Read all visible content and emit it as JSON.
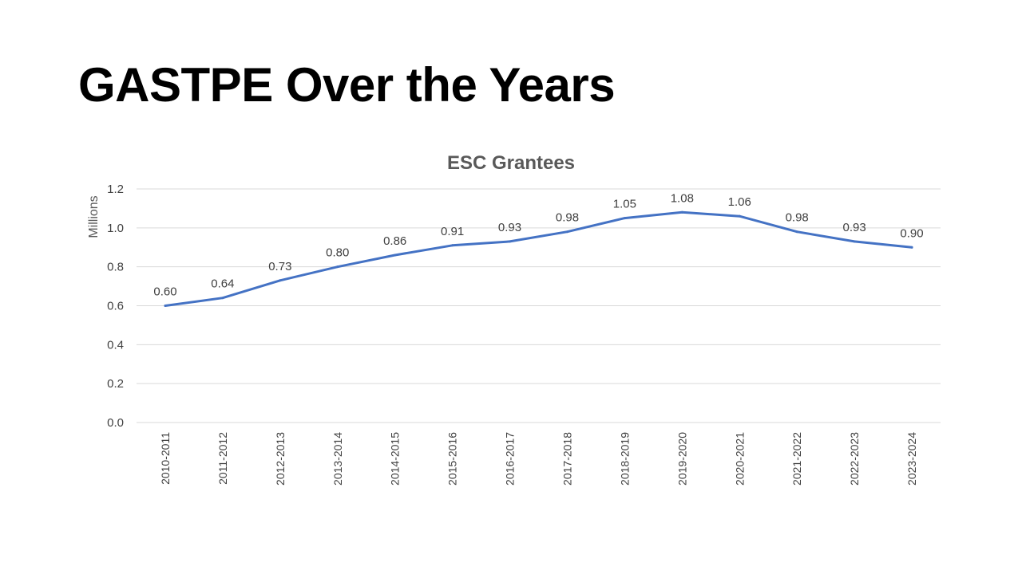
{
  "slide": {
    "title": "GASTPE Over the Years"
  },
  "chart_data": {
    "type": "line",
    "title": "ESC Grantees",
    "xlabel": "",
    "ylabel": "Millions",
    "ylim": [
      0,
      1.2
    ],
    "yticks": [
      "0.0",
      "0.2",
      "0.4",
      "0.6",
      "0.8",
      "1.0",
      "1.2"
    ],
    "ytick_values": [
      0,
      0.2,
      0.4,
      0.6,
      0.8,
      1.0,
      1.2
    ],
    "grid": true,
    "legend": "none",
    "categories": [
      "2010-2011",
      "2011-2012",
      "2012-2013",
      "2013-2014",
      "2014-2015",
      "2015-2016",
      "2016-2017",
      "2017-2018",
      "2018-2019",
      "2019-2020",
      "2020-2021",
      "2021-2022",
      "2022-2023",
      "2023-2024"
    ],
    "series": [
      {
        "color": "#4472c4",
        "values": [
          0.6,
          0.64,
          0.73,
          0.8,
          0.86,
          0.91,
          0.93,
          0.98,
          1.05,
          1.08,
          1.06,
          0.98,
          0.93,
          0.9
        ],
        "labels": [
          "0.60",
          "0.64",
          "0.73",
          "0.80",
          "0.86",
          "0.91",
          "0.93",
          "0.98",
          "1.05",
          "1.08",
          "1.06",
          "0.98",
          "0.93",
          "0.90"
        ]
      }
    ]
  }
}
